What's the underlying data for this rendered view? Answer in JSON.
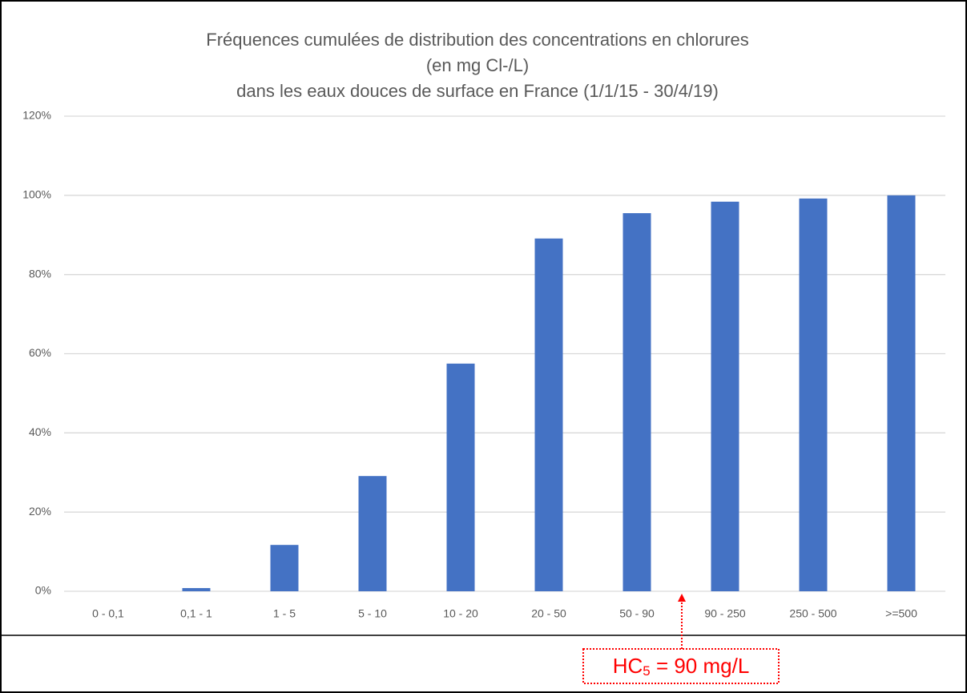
{
  "chart_data": {
    "type": "bar",
    "title": [
      "Fréquences cumulées de distribution des concentrations en chlorures",
      "(en mg Cl-/L)",
      "dans les eaux douces de surface en France (1/1/15 - 30/4/19)"
    ],
    "categories": [
      "0 - 0,1",
      "0,1 - 1",
      "1 - 5",
      "5 - 10",
      "10 - 20",
      "20 - 50",
      "50 - 90",
      "90 - 250",
      "250 - 500",
      ">=500"
    ],
    "values": [
      0,
      0.8,
      11.7,
      29.1,
      57.5,
      89.1,
      95.5,
      98.4,
      99.2,
      100
    ],
    "color": "#4472c4",
    "ylim": [
      0,
      120
    ],
    "yticks": [
      {
        "value": 0,
        "label": "0%"
      },
      {
        "value": 20,
        "label": "20%"
      },
      {
        "value": 40,
        "label": "40%"
      },
      {
        "value": 60,
        "label": "60%"
      },
      {
        "value": 80,
        "label": "80%"
      },
      {
        "value": 100,
        "label": "100%"
      },
      {
        "value": 120,
        "label": "120%"
      }
    ],
    "grid": true,
    "annotation": {
      "text": "HC",
      "subscript": "5",
      "rest": " = 90 mg/L",
      "color": "#ff0000"
    }
  }
}
